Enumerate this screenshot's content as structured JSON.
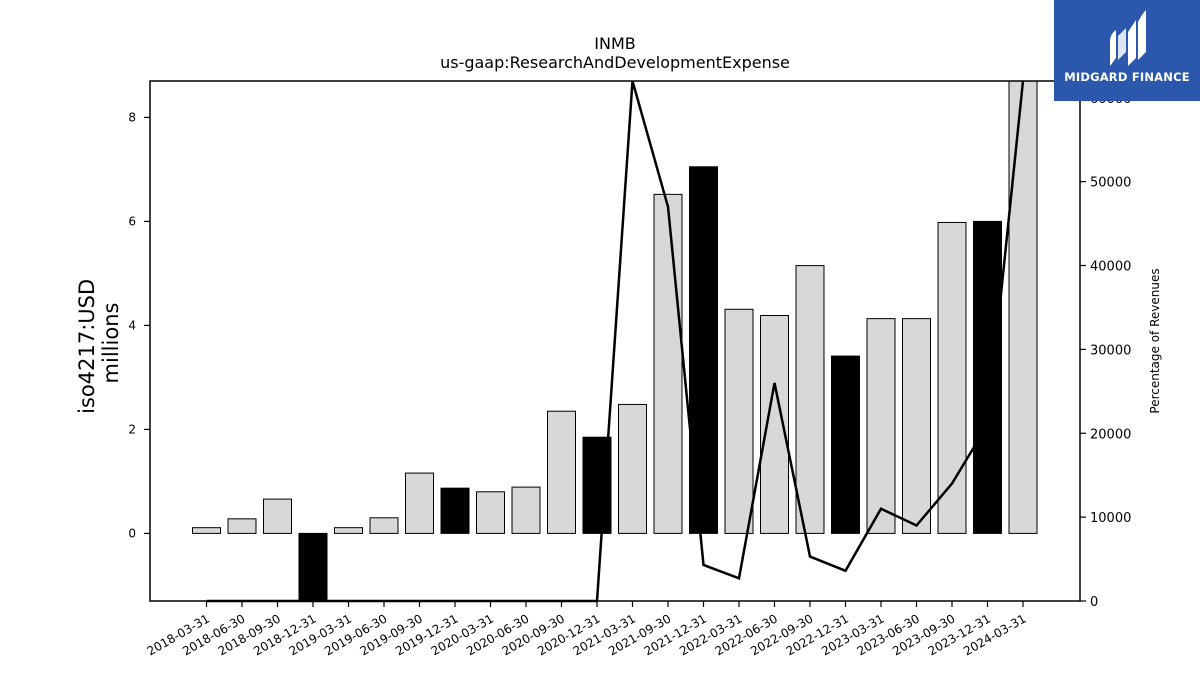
{
  "chart_data": {
    "type": "bar+line",
    "title": "INMB",
    "subtitle": "us-gaap:ResearchAndDevelopmentExpense",
    "ylabel": "iso4217:USD\nmillions",
    "y2label": "Percentage of Revenues",
    "categories": [
      "2018-03-31",
      "2018-06-30",
      "2018-09-30",
      "2018-12-31",
      "2019-03-31",
      "2019-06-30",
      "2019-09-30",
      "2019-12-31",
      "2020-03-31",
      "2020-06-30",
      "2020-09-30",
      "2020-12-31",
      "2021-03-31",
      "2021-09-30",
      "2021-12-31",
      "2022-03-31",
      "2022-06-30",
      "2022-09-30",
      "2022-12-31",
      "2023-03-31",
      "2023-06-30",
      "2023-09-30",
      "2023-12-31",
      "2024-03-31"
    ],
    "bar_values": [
      0.11,
      0.28,
      0.66,
      -1.3,
      0.11,
      0.3,
      1.16,
      0.87,
      0.8,
      0.89,
      2.35,
      1.85,
      2.48,
      6.52,
      7.05,
      4.31,
      4.19,
      5.15,
      3.41,
      4.13,
      4.13,
      5.98,
      6.0,
      8.7
    ],
    "bar_highlight": [
      false,
      false,
      false,
      true,
      false,
      false,
      false,
      true,
      false,
      false,
      false,
      true,
      false,
      false,
      true,
      false,
      false,
      false,
      true,
      false,
      false,
      false,
      true,
      false
    ],
    "line_values": [
      0,
      0,
      0,
      0,
      0,
      0,
      0,
      0,
      0,
      0,
      0,
      0,
      62000,
      47000,
      4300,
      2700,
      26000,
      5300,
      3600,
      11000,
      9000,
      14000,
      21000,
      62000
    ],
    "ylim": [
      -1.3,
      8.7
    ],
    "y2lim": [
      0,
      62000
    ],
    "yticks": [
      0,
      2,
      4,
      6,
      8
    ],
    "y2ticks": [
      0,
      10000,
      20000,
      30000,
      40000,
      50000,
      60000
    ],
    "colors": {
      "bar": "#d8d8d8",
      "highlight": "#000000",
      "line": "#000000",
      "edge": "#000000"
    }
  },
  "logo": {
    "text": "MIDGARD FINANCE",
    "color": "#2b58ac"
  }
}
